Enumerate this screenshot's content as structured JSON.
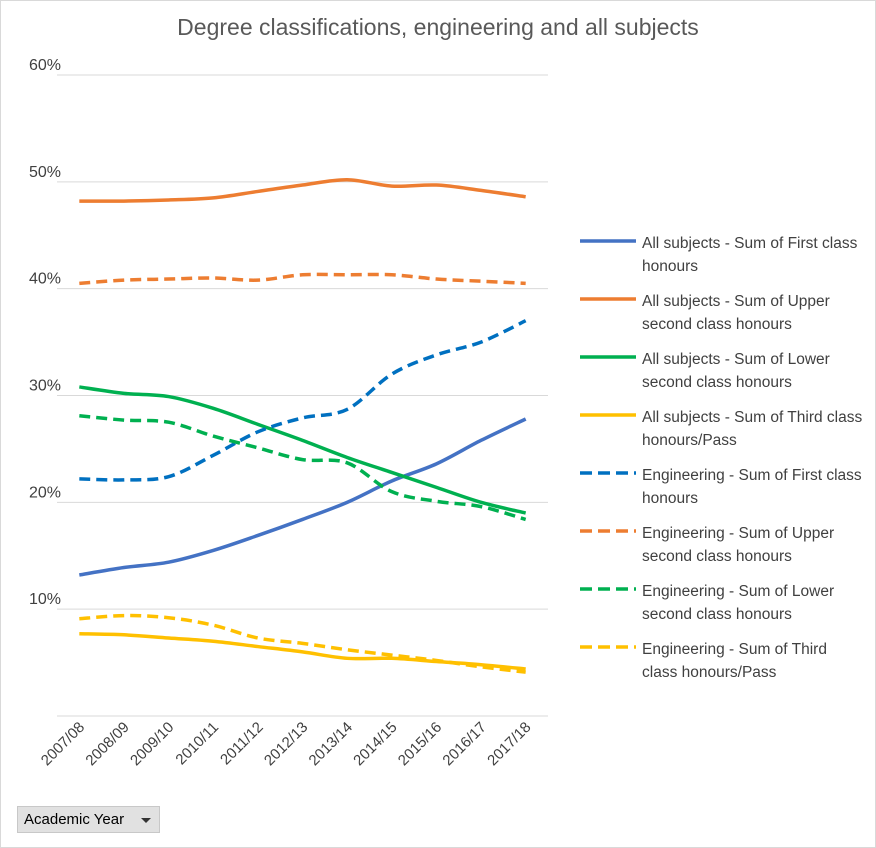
{
  "chart_data": {
    "type": "line",
    "title": "Degree classifications, engineering and all subjects",
    "xlabel": "",
    "ylabel": "",
    "categories": [
      "2007/08",
      "2008/09",
      "2009/10",
      "2010/11",
      "2011/12",
      "2012/13",
      "2013/14",
      "2014/15",
      "2015/16",
      "2016/17",
      "2017/18"
    ],
    "ylim": [
      0,
      60
    ],
    "yticks": [
      10,
      20,
      30,
      40,
      50,
      60
    ],
    "ytick_labels": [
      "10%",
      "20%",
      "30%",
      "40%",
      "50%",
      "60%"
    ],
    "grid": true,
    "legend_position": "right",
    "series": [
      {
        "name": "All subjects - Sum of First class honours",
        "color": "#4472C4",
        "style": "solid",
        "values": [
          13.2,
          13.9,
          14.4,
          15.5,
          16.9,
          18.4,
          20.0,
          22.0,
          23.6,
          25.8,
          27.8
        ]
      },
      {
        "name": "All subjects - Sum of Upper second class honours",
        "color": "#ED7D31",
        "style": "solid",
        "values": [
          48.2,
          48.2,
          48.3,
          48.5,
          49.1,
          49.7,
          50.2,
          49.6,
          49.7,
          49.2,
          48.6
        ]
      },
      {
        "name": "All subjects - Sum of Lower second class honours",
        "color": "#00B050",
        "style": "solid",
        "values": [
          30.8,
          30.2,
          29.9,
          28.8,
          27.3,
          25.8,
          24.2,
          22.8,
          21.4,
          20.0,
          19.0
        ]
      },
      {
        "name": "All subjects - Sum of Third class honours/Pass",
        "color": "#FFC000",
        "style": "solid",
        "values": [
          7.7,
          7.6,
          7.3,
          7.0,
          6.5,
          6.0,
          5.4,
          5.4,
          5.1,
          4.8,
          4.4
        ]
      },
      {
        "name": "Engineering - Sum of First class honours",
        "color": "#0070C0",
        "style": "dashed",
        "values": [
          22.2,
          22.1,
          22.4,
          24.4,
          26.6,
          27.9,
          28.7,
          32.0,
          33.8,
          35.0,
          37.0
        ]
      },
      {
        "name": "Engineering - Sum of Upper second class honours",
        "color": "#ED7D31",
        "style": "dashed",
        "values": [
          40.5,
          40.8,
          40.9,
          41.0,
          40.8,
          41.3,
          41.3,
          41.3,
          40.9,
          40.7,
          40.5
        ]
      },
      {
        "name": "Engineering - Sum of Lower second class honours",
        "color": "#00B050",
        "style": "dashed",
        "values": [
          28.1,
          27.7,
          27.5,
          26.2,
          25.1,
          24.0,
          23.7,
          21.0,
          20.1,
          19.6,
          18.4
        ]
      },
      {
        "name": "Engineering - Sum of Third class honours/Pass",
        "color": "#FFC000",
        "style": "dashed",
        "values": [
          9.1,
          9.4,
          9.2,
          8.5,
          7.3,
          6.8,
          6.2,
          5.7,
          5.2,
          4.6,
          4.1
        ]
      }
    ]
  },
  "field_button": {
    "label": "Academic Year",
    "icon": "dropdown-arrow-icon"
  }
}
